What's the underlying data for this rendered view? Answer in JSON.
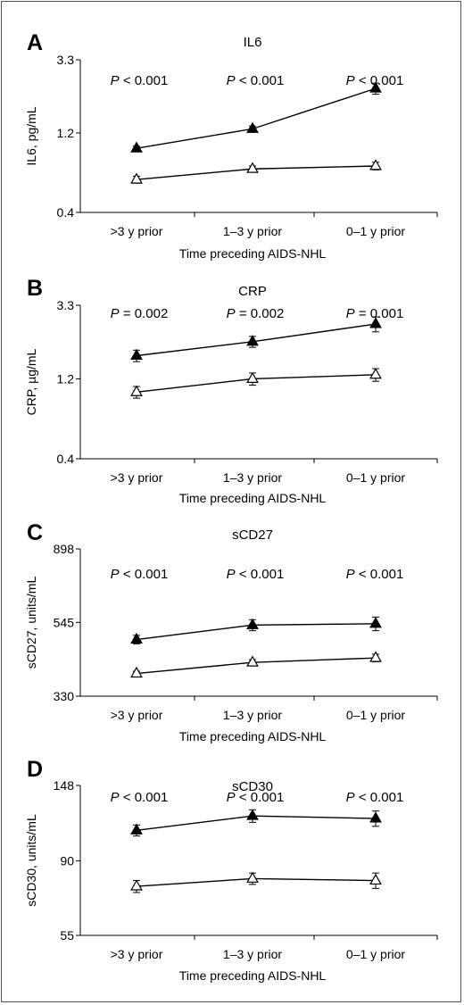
{
  "chart_data": [
    {
      "panel": "A",
      "type": "line",
      "title": "IL6",
      "ylabel": "IL6, pg/mL",
      "xlabel": "Time preceding AIDS-NHL",
      "categories": [
        ">3 y prior",
        "1–3 y prior",
        "0–1 y prior"
      ],
      "y_scale": "log",
      "ylim": [
        0.4,
        3.3
      ],
      "yticks": [
        {
          "value": 0.4,
          "label": "0.4"
        },
        {
          "value": 1.2,
          "label": "1.2"
        },
        {
          "value": 3.3,
          "label": "3.3"
        }
      ],
      "series": [
        {
          "marker": "filled-triangle",
          "values": [
            0.97,
            1.27,
            2.22
          ],
          "err": [
            0.03,
            0.05,
            0.17
          ]
        },
        {
          "marker": "open-triangle",
          "values": [
            0.63,
            0.73,
            0.76
          ],
          "err": [
            0.03,
            0.03,
            0.04
          ]
        }
      ],
      "p_values": [
        {
          "prefix": "P",
          "text": " < 0.001"
        },
        {
          "prefix": "P",
          "text": " < 0.001"
        },
        {
          "prefix": "P",
          "text": " < 0.001"
        }
      ]
    },
    {
      "panel": "B",
      "type": "line",
      "title": "CRP",
      "ylabel": "CRP, µg/mL",
      "xlabel": "Time preceding AIDS-NHL",
      "categories": [
        ">3 y prior",
        "1–3 y prior",
        "0–1 y prior"
      ],
      "y_scale": "log",
      "ylim": [
        0.4,
        3.3
      ],
      "yticks": [
        {
          "value": 0.4,
          "label": "0.4"
        },
        {
          "value": 1.2,
          "label": "1.2"
        },
        {
          "value": 3.3,
          "label": "3.3"
        }
      ],
      "series": [
        {
          "marker": "filled-triangle",
          "values": [
            1.65,
            2.0,
            2.55
          ],
          "err": [
            0.13,
            0.15,
            0.26
          ]
        },
        {
          "marker": "open-triangle",
          "values": [
            1.0,
            1.2,
            1.27
          ],
          "err": [
            0.08,
            0.1,
            0.11
          ]
        }
      ],
      "p_values": [
        {
          "prefix": "P",
          "text": " = 0.002"
        },
        {
          "prefix": "P",
          "text": " = 0.002"
        },
        {
          "prefix": "P",
          "text": " = 0.001"
        }
      ]
    },
    {
      "panel": "C",
      "type": "line",
      "title": "sCD27",
      "ylabel": "sCD27, units/mL",
      "xlabel": "Time preceding AIDS-NHL",
      "categories": [
        ">3 y prior",
        "1–3 y prior",
        "0–1 y prior"
      ],
      "y_scale": "log",
      "ylim": [
        330,
        898
      ],
      "yticks": [
        {
          "value": 330,
          "label": "330"
        },
        {
          "value": 545,
          "label": "545"
        },
        {
          "value": 898,
          "label": "898"
        }
      ],
      "series": [
        {
          "marker": "filled-triangle",
          "values": [
            485,
            535,
            540
          ],
          "err": [
            14,
            20,
            25
          ]
        },
        {
          "marker": "open-triangle",
          "values": [
            385,
            415,
            428
          ],
          "err": [
            6,
            8,
            11
          ]
        }
      ],
      "p_values": [
        {
          "prefix": "P",
          "text": " < 0.001"
        },
        {
          "prefix": "P",
          "text": " < 0.001"
        },
        {
          "prefix": "P",
          "text": " < 0.001"
        }
      ]
    },
    {
      "panel": "D",
      "type": "line",
      "title": "sCD30",
      "ylabel": "sCD30, units/mL",
      "xlabel": "Time preceding AIDS-NHL",
      "categories": [
        ">3 y prior",
        "1–3 y prior",
        "0–1 y prior"
      ],
      "y_scale": "log",
      "ylim": [
        55,
        148
      ],
      "yticks": [
        {
          "value": 55,
          "label": "55"
        },
        {
          "value": 90,
          "label": "90"
        },
        {
          "value": 148,
          "label": "148"
        }
      ],
      "series": [
        {
          "marker": "filled-triangle",
          "values": [
            110,
            121,
            119
          ],
          "err": [
            4,
            5,
            6
          ]
        },
        {
          "marker": "open-triangle",
          "values": [
            76,
            80,
            79
          ],
          "err": [
            3,
            3,
            4
          ]
        }
      ],
      "p_values": [
        {
          "prefix": "P",
          "text": " < 0.001"
        },
        {
          "prefix": "P",
          "text": " < 0.001"
        },
        {
          "prefix": "P",
          "text": " < 0.001"
        }
      ]
    }
  ]
}
